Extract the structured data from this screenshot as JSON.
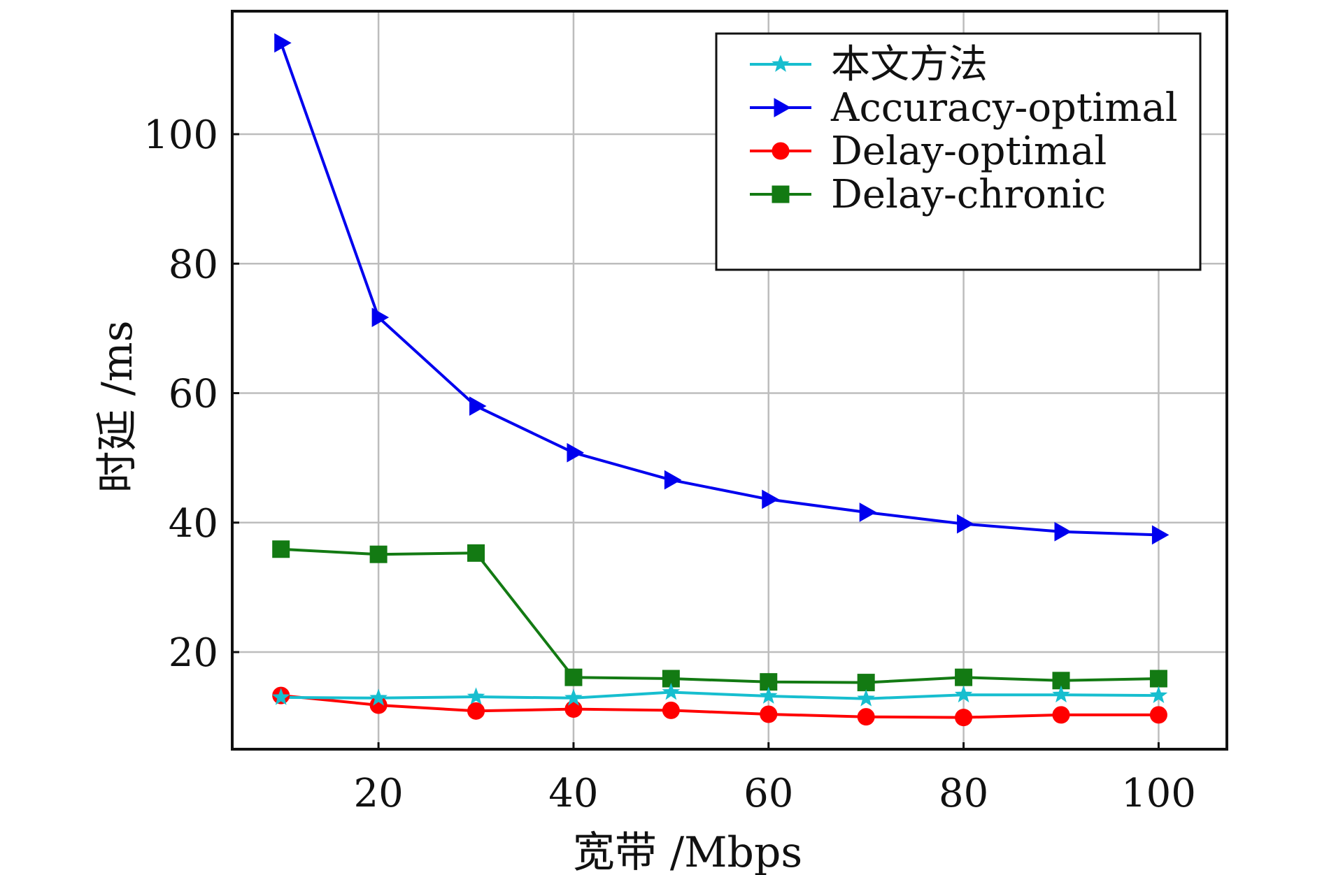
{
  "chart_data": {
    "type": "line",
    "xlabel": "宽带 /Mbps",
    "ylabel": "时延 /ms",
    "xlim": [
      5,
      107
    ],
    "ylim": [
      5,
      119
    ],
    "x_ticks": [
      20,
      40,
      60,
      80,
      100
    ],
    "y_ticks": [
      20,
      40,
      60,
      80,
      100
    ],
    "grid": true,
    "legend_position": "top-right",
    "x": [
      10,
      20,
      30,
      40,
      50,
      60,
      70,
      80,
      90,
      100
    ],
    "series": [
      {
        "name": "本文方法",
        "color": "#17becf",
        "marker": "star",
        "values": [
          13.0,
          12.9,
          13.1,
          12.9,
          13.8,
          13.2,
          12.8,
          13.4,
          13.4,
          13.3
        ]
      },
      {
        "name": "Accuracy-optimal",
        "color": "#0000ee",
        "marker": "triangle-right",
        "values": [
          114.1,
          71.7,
          58.0,
          50.8,
          46.6,
          43.6,
          41.6,
          39.8,
          38.6,
          38.1
        ]
      },
      {
        "name": "Delay-optimal",
        "color": "#ff0000",
        "marker": "circle",
        "values": [
          13.3,
          11.8,
          10.9,
          11.2,
          11.0,
          10.4,
          10.0,
          9.9,
          10.3,
          10.3
        ]
      },
      {
        "name": "Delay-chronic",
        "color": "#137a13",
        "marker": "square",
        "values": [
          35.9,
          35.1,
          35.3,
          16.1,
          15.9,
          15.4,
          15.3,
          16.1,
          15.6,
          15.9
        ]
      }
    ]
  }
}
